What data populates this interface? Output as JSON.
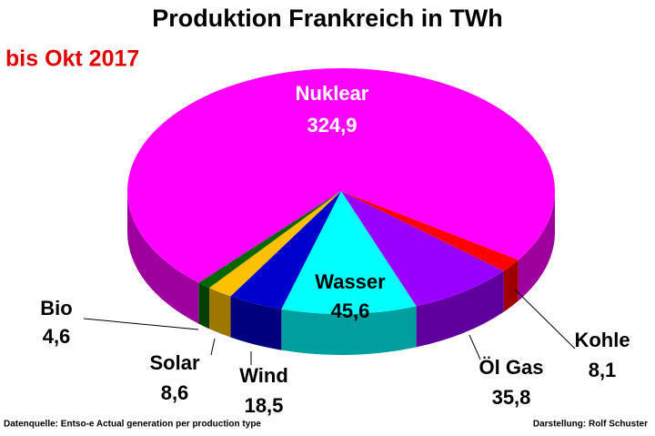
{
  "chart_data": {
    "type": "pie3d",
    "title": "Produktion Frankreich in TWh",
    "subtitle": "bis Okt 2017",
    "categories": [
      "Kohle",
      "Öl Gas",
      "Wasser",
      "Wind",
      "Solar",
      "Bio",
      "Nuklear"
    ],
    "values": [
      8.1,
      35.8,
      45.6,
      18.5,
      8.6,
      4.6,
      324.9
    ],
    "value_labels": [
      "8,1",
      "35,8",
      "45,6",
      "18,5",
      "8,6",
      "4,6",
      "324,9"
    ],
    "colors": [
      "#ff0000",
      "#9900ff",
      "#00ffff",
      "#0000cc",
      "#ffc000",
      "#006600",
      "#ff00ff"
    ],
    "source": "Datenquelle: Entso-e  Actual generation per production type",
    "credit": "Darstellung: Rolf Schuster"
  }
}
